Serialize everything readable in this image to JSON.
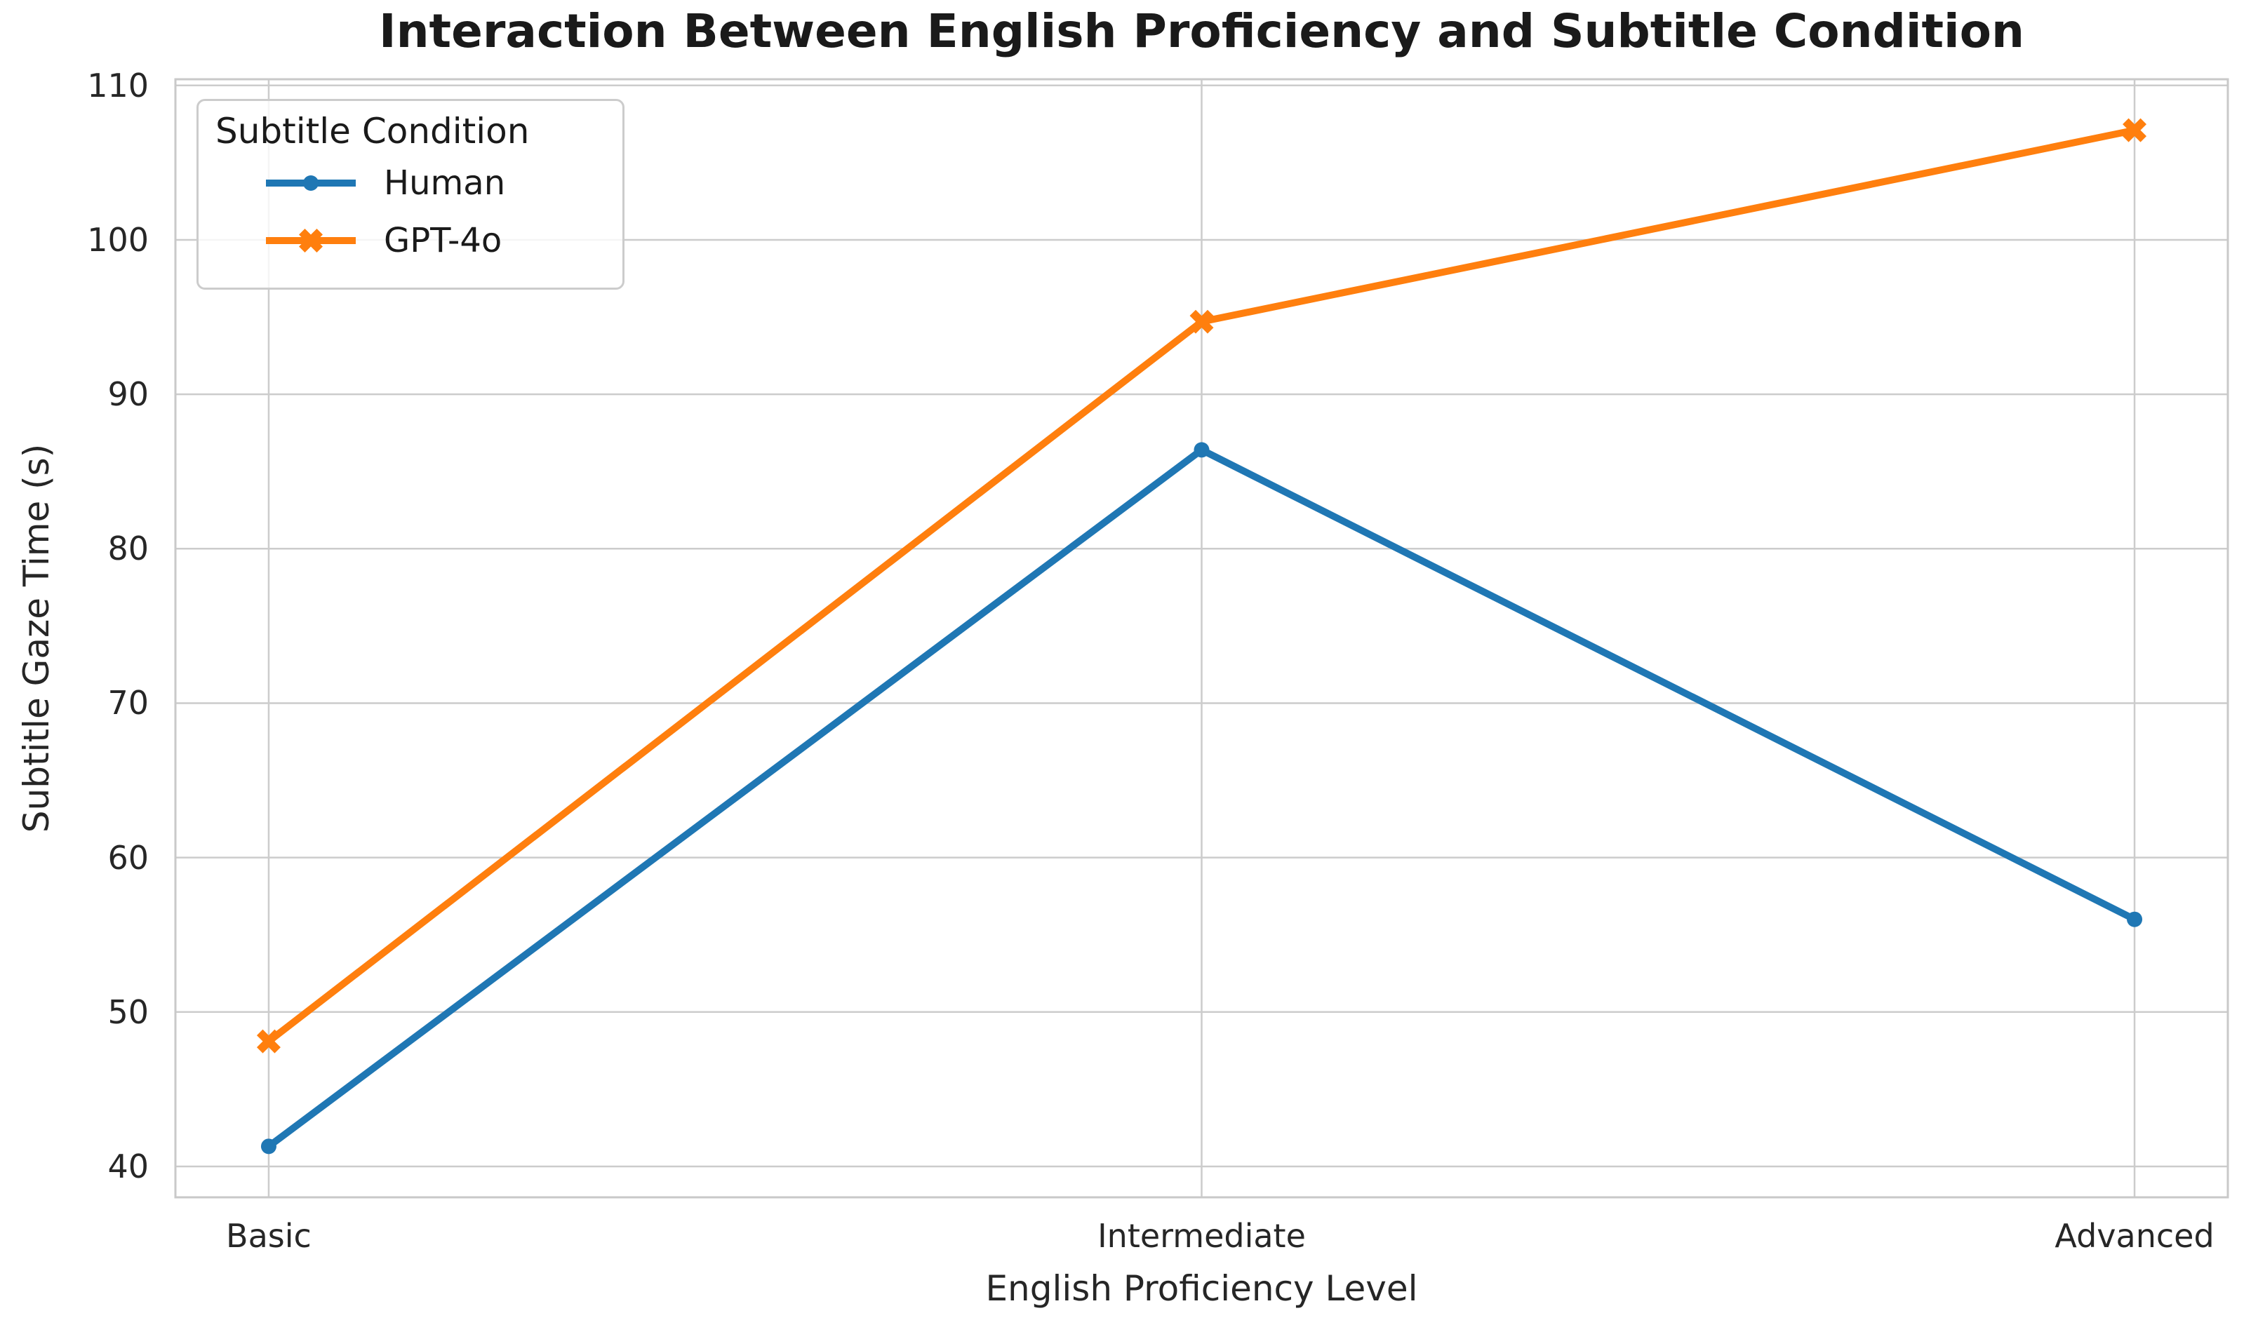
{
  "chart_data": {
    "type": "line",
    "title": "Interaction Between English Proficiency and Subtitle Condition",
    "xlabel": "English Proficiency Level",
    "ylabel": "Subtitle Gaze Time (s)",
    "categories": [
      "Basic",
      "Intermediate",
      "Advanced"
    ],
    "series": [
      {
        "name": "Human",
        "color": "#1f77b4",
        "marker": "circle",
        "values": [
          41.3,
          86.4,
          56.0
        ]
      },
      {
        "name": "GPT-4o",
        "color": "#ff7f0e",
        "marker": "x",
        "values": [
          48.1,
          94.7,
          107.1
        ]
      }
    ],
    "yticks": [
      40,
      50,
      60,
      70,
      80,
      90,
      100,
      110
    ],
    "ylim": [
      38.0,
      110.4
    ],
    "xlim": [
      -0.1,
      2.1
    ],
    "grid": true,
    "legend": {
      "title": "Subtitle Condition",
      "position": "upper left"
    },
    "colors": {
      "grid": "#cccccc",
      "spine": "#c9c9c9",
      "tick_text": "#262626",
      "title_text": "#1a1a1a",
      "background": "#ffffff"
    }
  }
}
